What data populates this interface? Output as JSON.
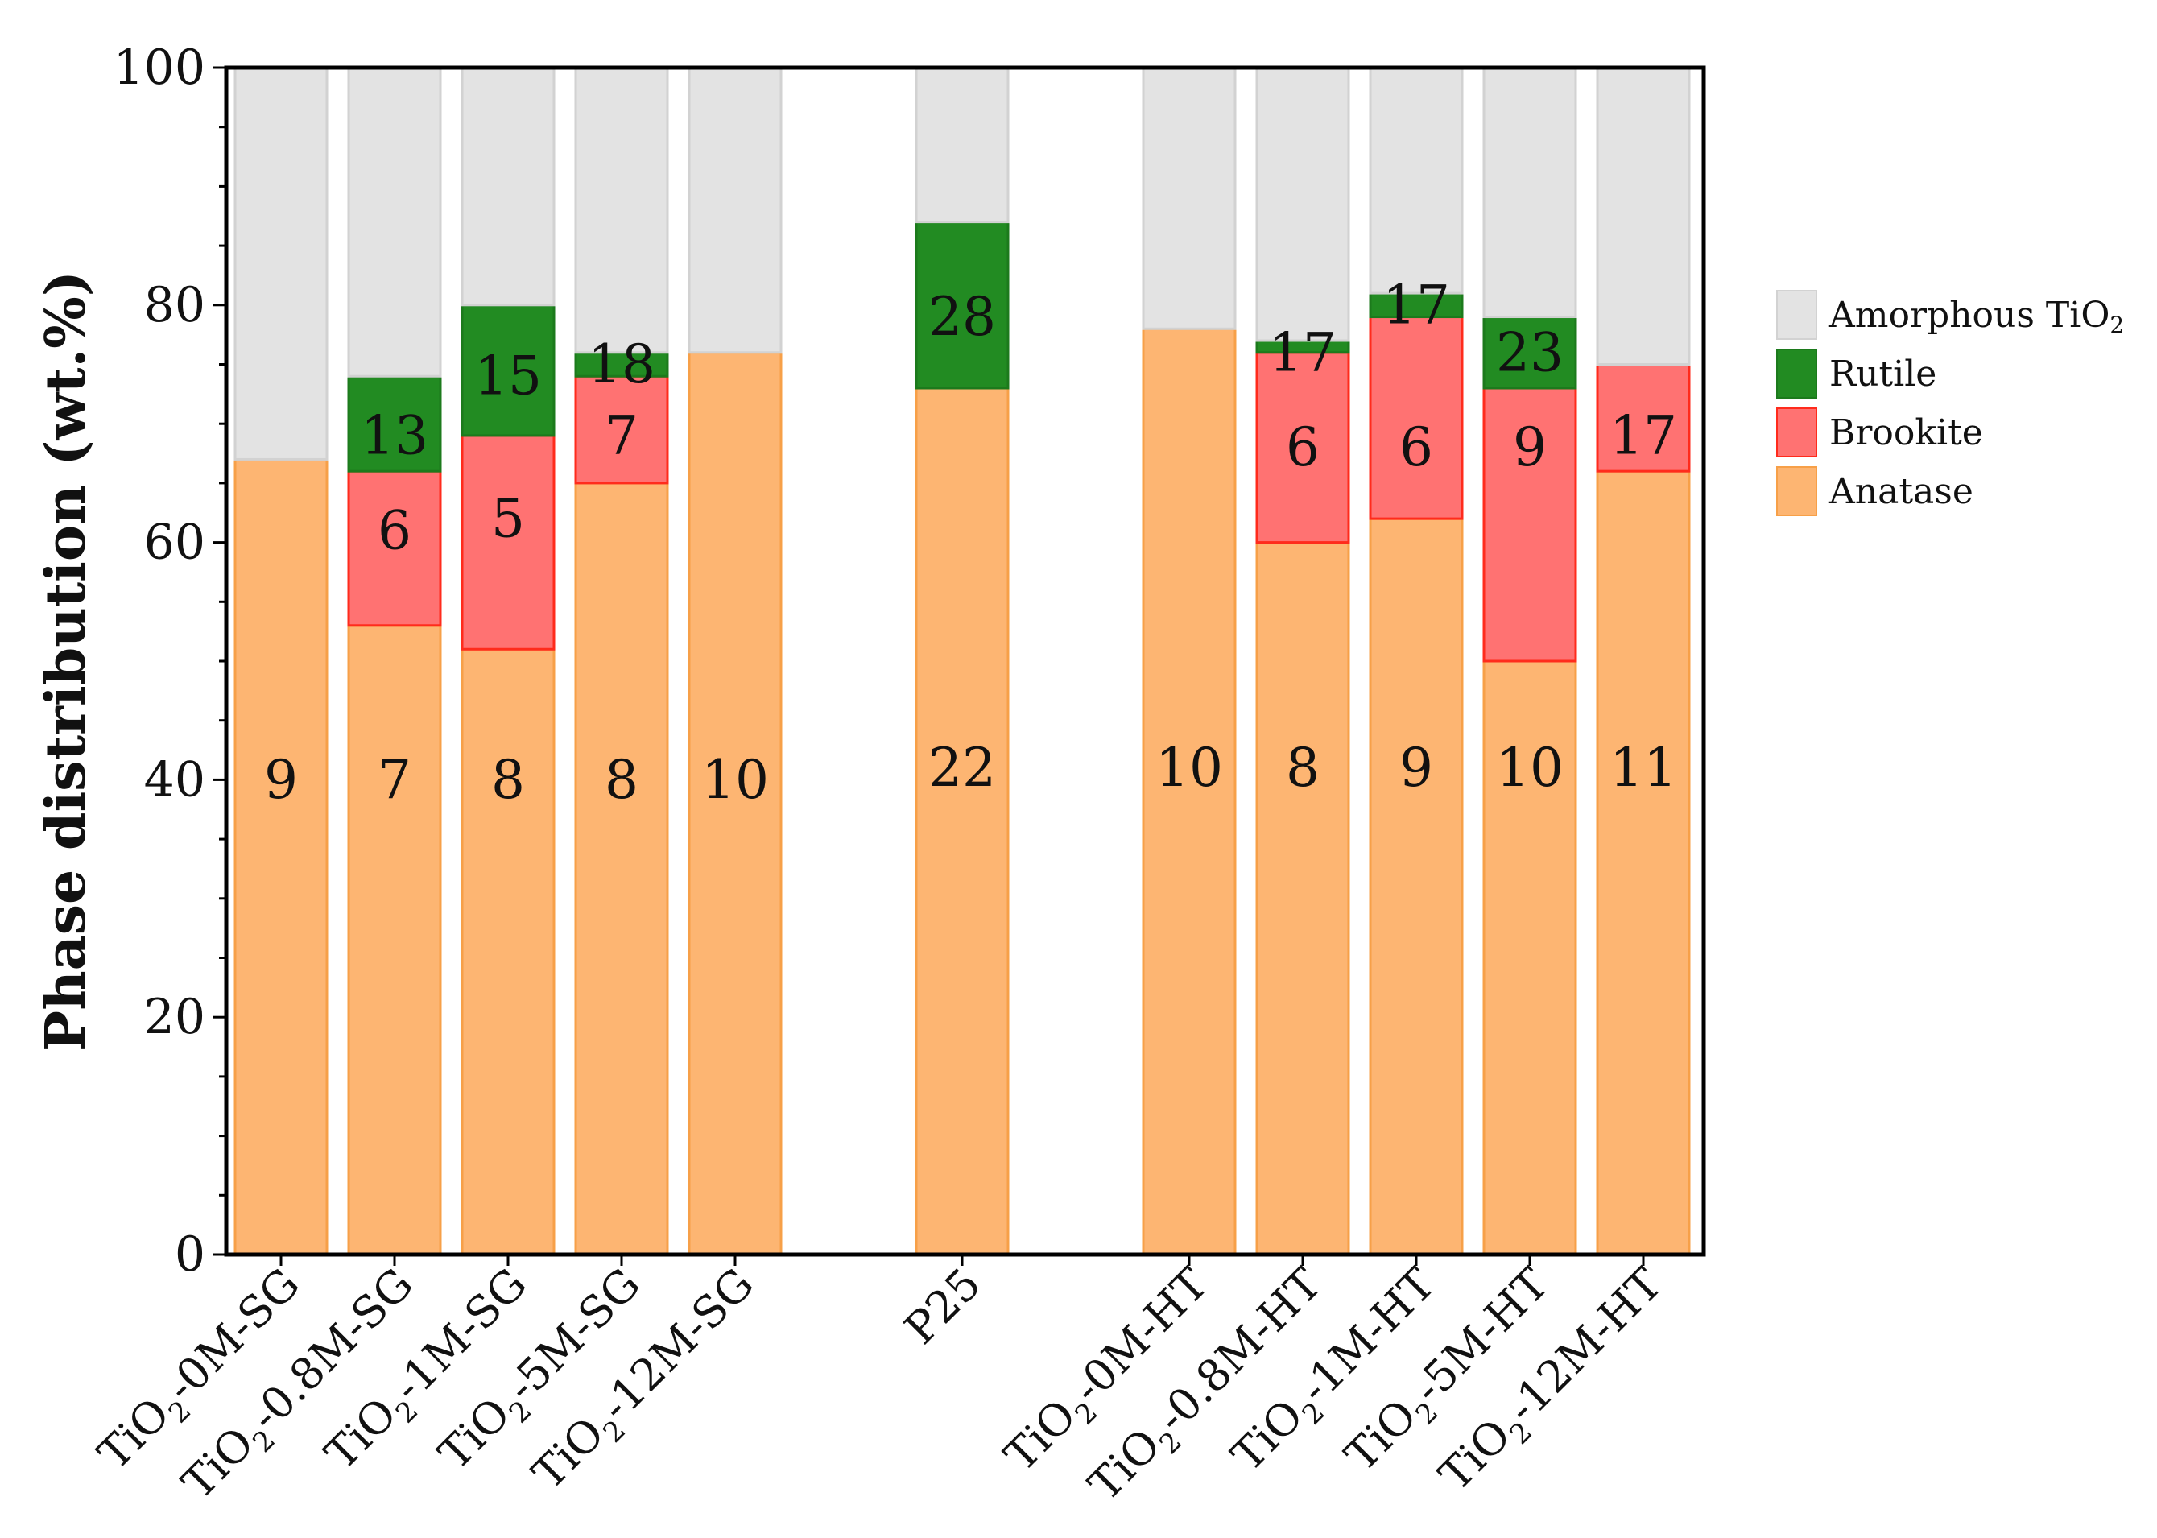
{
  "chart_data": {
    "type": "bar",
    "stacked": true,
    "title": "",
    "xlabel": "",
    "ylabel": "Phase distribution (wt.%)",
    "ylim": [
      0,
      100
    ],
    "yticks": [
      "0",
      "20",
      "40",
      "60",
      "80",
      "100"
    ],
    "categories": [
      {
        "pre": "TiO",
        "sub": "2",
        "post": "-0M-SG"
      },
      {
        "pre": "TiO",
        "sub": "2",
        "post": "-0.8M-SG"
      },
      {
        "pre": "TiO",
        "sub": "2",
        "post": "-1M-SG"
      },
      {
        "pre": "TiO",
        "sub": "2",
        "post": "-5M-SG"
      },
      {
        "pre": "TiO",
        "sub": "2",
        "post": "-12M-SG"
      },
      {
        "pre": "P25",
        "sub": "",
        "post": ""
      },
      {
        "pre": "TiO",
        "sub": "2",
        "post": "-0M-HT"
      },
      {
        "pre": "TiO",
        "sub": "2",
        "post": "-0.8M-HT"
      },
      {
        "pre": "TiO",
        "sub": "2",
        "post": "-1M-HT"
      },
      {
        "pre": "TiO",
        "sub": "2",
        "post": "-5M-HT"
      },
      {
        "pre": "TiO",
        "sub": "2",
        "post": "-12M-HT"
      }
    ],
    "positions": [
      0,
      1,
      2,
      3,
      4,
      6,
      8,
      9,
      10,
      11,
      12
    ],
    "series": [
      {
        "name": "Anatase",
        "color": "#FDB572",
        "edge": "#F7A048",
        "values": [
          67,
          53,
          51,
          65,
          76,
          73,
          78,
          60,
          62,
          50,
          66
        ],
        "labels": [
          "9",
          "7",
          "8",
          "8",
          "10",
          "22",
          "10",
          "8",
          "9",
          "10",
          "11"
        ],
        "label_y": [
          40,
          40,
          40,
          40,
          40,
          41,
          41,
          41,
          41,
          41,
          41
        ]
      },
      {
        "name": "Brookite",
        "color": "#FF7272",
        "edge": "#FF2B1C",
        "values": [
          0,
          13,
          18,
          9,
          0,
          0,
          0,
          16,
          17,
          23,
          9
        ],
        "labels": [
          "",
          "6",
          "5",
          "7",
          "",
          "",
          "",
          "6",
          "6",
          "9",
          "17"
        ],
        "label_y": [
          0,
          61,
          62,
          69,
          0,
          0,
          0,
          68,
          68,
          68,
          69
        ]
      },
      {
        "name": "Rutile",
        "color": "#228B22",
        "edge": "#1C7A1C",
        "values": [
          0,
          8,
          11,
          2,
          0,
          14,
          0,
          1,
          2,
          6,
          0
        ],
        "labels": [
          "",
          "13",
          "15",
          "18",
          "",
          "28",
          "",
          "17",
          "17",
          "23",
          ""
        ],
        "label_y": [
          0,
          69,
          74,
          75,
          0,
          79,
          0,
          76,
          80,
          76,
          0
        ]
      },
      {
        "name": "Amorphous TiO",
        "name_sub": "2",
        "color": "#E3E3E3",
        "edge": "#D2D2D2",
        "values": [
          33,
          26,
          20,
          24,
          24,
          13,
          22,
          23,
          19,
          21,
          25
        ],
        "labels": [
          "",
          "",
          "",
          "",
          "",
          "",
          "",
          "",
          "",
          "",
          ""
        ],
        "label_y": [
          0,
          0,
          0,
          0,
          0,
          0,
          0,
          0,
          0,
          0,
          0
        ]
      }
    ],
    "legend_order": [
      "Amorphous TiO",
      "Rutile",
      "Brookite",
      "Anatase"
    ],
    "legend_location": "right"
  }
}
